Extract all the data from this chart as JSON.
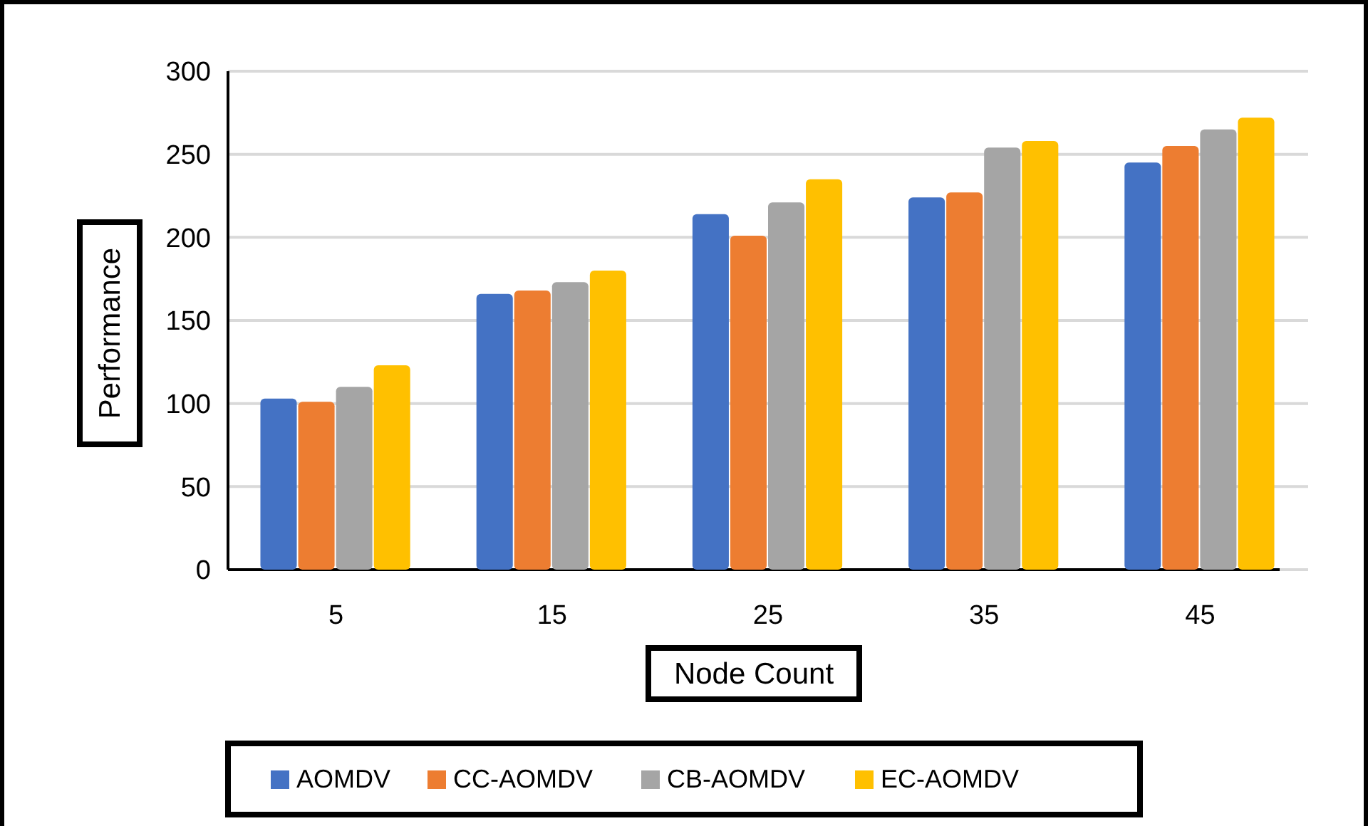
{
  "chart_data": {
    "type": "bar",
    "xlabel": "Node Count",
    "ylabel": "Performance",
    "categories": [
      "5",
      "15",
      "25",
      "35",
      "45"
    ],
    "series": [
      {
        "name": "AOMDV",
        "color": "#4472c4",
        "values": [
          103,
          166,
          214,
          224,
          245
        ]
      },
      {
        "name": "CC-AOMDV",
        "color": "#ed7d31",
        "values": [
          101,
          168,
          201,
          227,
          255
        ]
      },
      {
        "name": "CB-AOMDV",
        "color": "#a5a5a5",
        "values": [
          110,
          173,
          221,
          254,
          265
        ]
      },
      {
        "name": "EC-AOMDV",
        "color": "#ffc000",
        "values": [
          123,
          180,
          235,
          258,
          272
        ]
      }
    ],
    "ylim": [
      0,
      300
    ],
    "yticks": [
      0,
      50,
      100,
      150,
      200,
      250,
      300
    ],
    "grid": "y",
    "legend": "bottom"
  }
}
